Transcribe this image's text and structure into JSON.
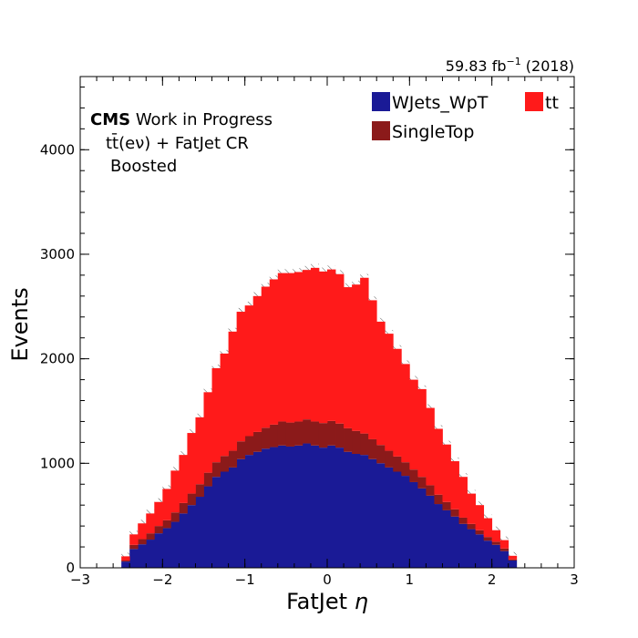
{
  "chart_data": {
    "type": "bar",
    "stacked": true,
    "xlabel_prefix": "FatJet ",
    "xlabel_symbol": "η",
    "ylabel": "Events",
    "xlim": [
      -3,
      3
    ],
    "ylim": [
      0,
      4700
    ],
    "xticks": [
      -3,
      -2,
      -1,
      0,
      1,
      2,
      3
    ],
    "xtick_labels": [
      "−3",
      "−2",
      "−1",
      "0",
      "1",
      "2",
      "3"
    ],
    "yticks": [
      0,
      1000,
      2000,
      3000,
      4000
    ],
    "ytick_labels": [
      "0",
      "1000",
      "2000",
      "3000",
      "4000"
    ],
    "grid": false,
    "legend_position": "top-right",
    "lumi_label": "59.83 fb",
    "lumi_exponent": "−1",
    "lumi_year": " (2018)",
    "cms_label": "CMS",
    "cms_sublabel": " Work in Progress",
    "region_label": "tt̄(eν) + FatJet CR",
    "category_label": "Boosted",
    "bin_edges": [
      -2.5,
      -2.4,
      -2.3,
      -2.2,
      -2.1,
      -2.0,
      -1.9,
      -1.8,
      -1.7,
      -1.6,
      -1.5,
      -1.4,
      -1.3,
      -1.2,
      -1.1,
      -1.0,
      -0.9,
      -0.8,
      -0.7,
      -0.6,
      -0.5,
      -0.4,
      -0.3,
      -0.2,
      -0.1,
      0.0,
      0.1,
      0.2,
      0.3,
      0.4,
      0.5,
      0.6,
      0.7,
      0.8,
      0.9,
      1.0,
      1.1,
      1.2,
      1.3,
      1.4,
      1.5,
      1.6,
      1.7,
      1.8,
      1.9,
      2.0,
      2.1,
      2.2,
      2.3,
      2.4,
      2.5
    ],
    "series": [
      {
        "name": "WJets_WpT",
        "color": "#1a1a96",
        "values": [
          60,
          180,
          225,
          270,
          330,
          380,
          440,
          520,
          600,
          680,
          780,
          870,
          920,
          960,
          1040,
          1080,
          1110,
          1140,
          1155,
          1170,
          1160,
          1170,
          1190,
          1170,
          1150,
          1170,
          1150,
          1110,
          1090,
          1080,
          1040,
          1000,
          960,
          920,
          880,
          820,
          760,
          690,
          610,
          550,
          490,
          420,
          370,
          320,
          260,
          220,
          160,
          70,
          0,
          0
        ]
      },
      {
        "name": "SingleTop",
        "color": "#8b1a1a",
        "values": [
          10,
          40,
          50,
          60,
          70,
          75,
          90,
          100,
          110,
          120,
          130,
          140,
          150,
          160,
          170,
          180,
          190,
          200,
          215,
          230,
          230,
          230,
          230,
          230,
          235,
          235,
          230,
          225,
          220,
          205,
          190,
          175,
          160,
          145,
          130,
          120,
          110,
          100,
          90,
          80,
          70,
          60,
          50,
          40,
          35,
          30,
          25,
          10,
          0,
          0
        ]
      },
      {
        "name": "tt",
        "color": "#ff1a1a",
        "values": [
          40,
          100,
          150,
          190,
          230,
          300,
          400,
          460,
          580,
          640,
          770,
          900,
          980,
          1140,
          1240,
          1250,
          1300,
          1350,
          1390,
          1420,
          1430,
          1430,
          1430,
          1470,
          1450,
          1450,
          1430,
          1350,
          1400,
          1490,
          1330,
          1180,
          1120,
          1030,
          940,
          860,
          840,
          740,
          630,
          550,
          460,
          390,
          290,
          240,
          180,
          110,
          80,
          35,
          0,
          0
        ]
      }
    ],
    "stack_order_bottom_to_top": [
      "WJets_WpT",
      "SingleTop",
      "tt"
    ],
    "legend_order": [
      "WJets_WpT",
      "SingleTop",
      "tt"
    ]
  }
}
